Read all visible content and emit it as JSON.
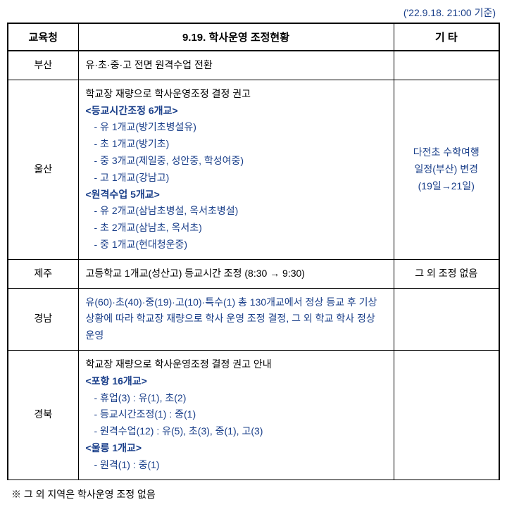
{
  "timestamp": "('22.9.18. 21:00 기준)",
  "header": {
    "col1": "교육청",
    "col2": "9.19. 학사운영 조정현황",
    "col3": "기 타"
  },
  "rows": {
    "r1": {
      "c1": "부산",
      "c2": "유·초·중·고 전면 원격수업 전환",
      "c3": ""
    },
    "r2": {
      "c1": "울산",
      "lines": {
        "l1": "학교장 재량으로 학사운영조정 결정 권고",
        "l2a": "  <등교시간조정 ",
        "l2b": "6개교",
        "l2c": ">",
        "l3": "  - 유 1개교(방기초병설유)",
        "l4": "  - 초 1개교(방기초)",
        "l5": "  - 중 3개교(제일중, 성안중, 학성여중)",
        "l6": "  - 고 1개교(강남고)",
        "l7a": "   <원격수업 ",
        "l7b": "5개교",
        "l7c": ">",
        "l8": "  - 유 2개교(삼남초병설, 옥서초병설)",
        "l9": "  - 초 2개교(삼남초, 옥서초)",
        "l10": "  - 중 1개교(현대청운중)"
      },
      "c3_l1": "다전초 수학여행",
      "c3_l2": "일정(부산) 변경",
      "c3_l3": "(19일→21일)"
    },
    "r3": {
      "c1": "제주",
      "c2": "고등학교 1개교(성산고) 등교시간 조정 (8:30 → 9:30)",
      "c3": "그 외 조정 없음"
    },
    "r4": {
      "c1": "경남",
      "c2": "유(60)·초(40)·중(19)·고(10)·특수(1) 총 130개교에서 정상 등교 후 기상 상황에 따라 학교장 재량으로 학사 운영 조정 결정, 그 외 학교 학사 정상 운영",
      "c3": ""
    },
    "r5": {
      "c1": "경북",
      "lines": {
        "l1": "학교장 재량으로 학사운영조정 결정 권고 안내",
        "l2a": "  <포항 ",
        "l2b": "16개교",
        "l2c": ">",
        "l3": "  - 휴업(3) : 유(1), 초(2)",
        "l4": "  - 등교시간조정(1) : 중(1)",
        "l5": "  - 원격수업(12) : 유(5), 초(3), 중(1), 고(3)",
        "l6a": "   <울릉 ",
        "l6b": "1개교",
        "l6c": ">",
        "l7": "  - 원격(1) : 중(1)"
      },
      "c3": ""
    }
  },
  "footnote": "※ 그 외 지역은 학사운영 조정 없음"
}
